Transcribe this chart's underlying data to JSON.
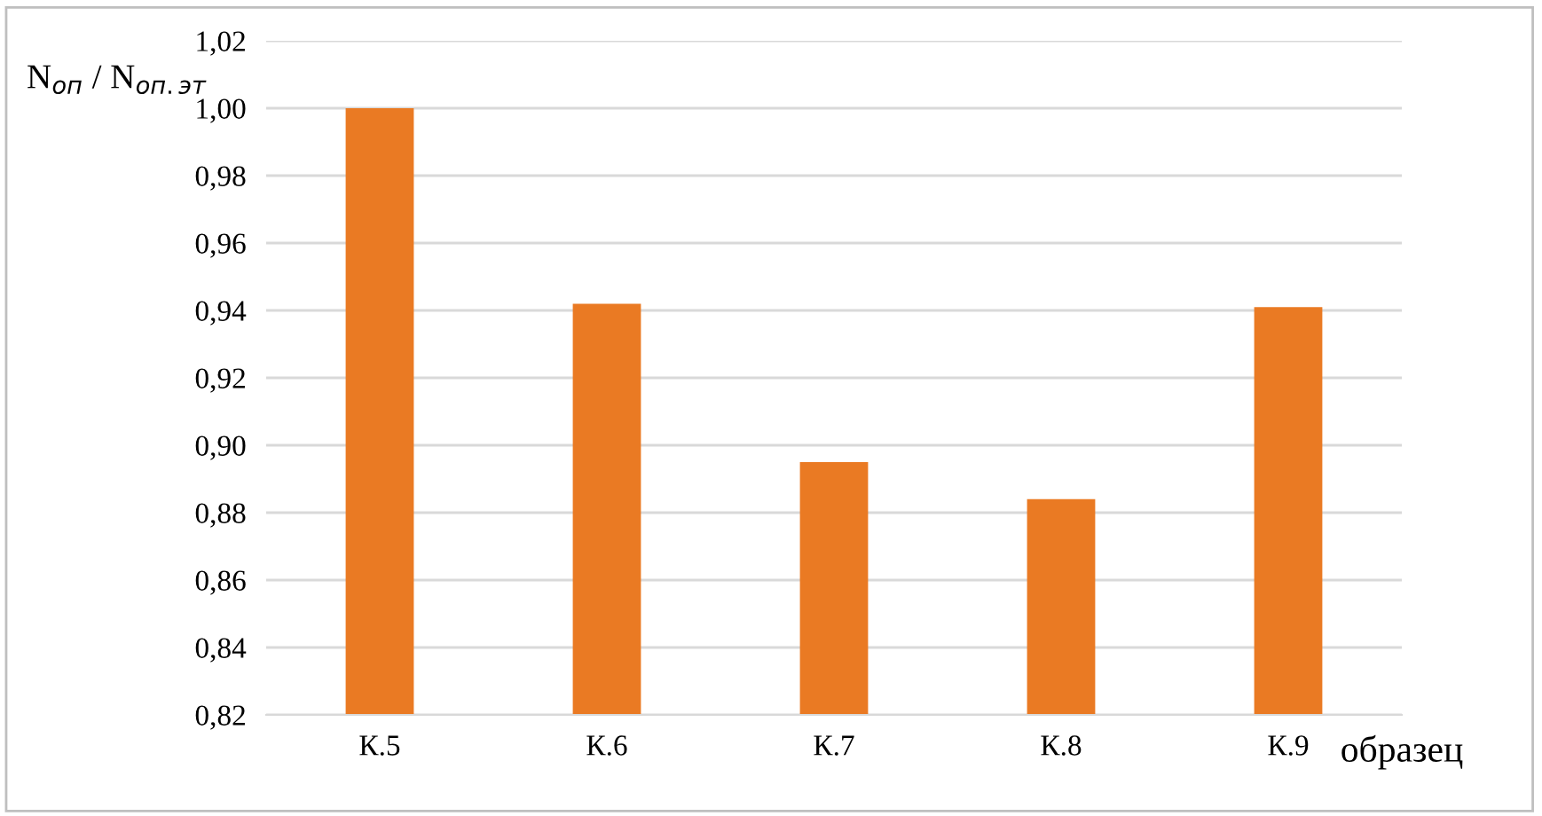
{
  "chart_data": {
    "type": "bar",
    "ylabel": "N$_{оп}$ / N$_{оп.эт}$",
    "xlabel": "образец",
    "categories": [
      "К.5",
      "К.6",
      "К.7",
      "К.8",
      "К.9"
    ],
    "values": [
      1.0,
      0.942,
      0.895,
      0.884,
      0.941
    ],
    "color": "#ea7a23",
    "ylim": [
      0.82,
      1.02
    ],
    "yticks": [
      {
        "value": 0.82,
        "label": "0,82"
      },
      {
        "value": 0.84,
        "label": "0,84"
      },
      {
        "value": 0.86,
        "label": "0,86"
      },
      {
        "value": 0.88,
        "label": "0,88"
      },
      {
        "value": 0.9,
        "label": "0,90"
      },
      {
        "value": 0.92,
        "label": "0,92"
      },
      {
        "value": 0.94,
        "label": "0,94"
      },
      {
        "value": 0.96,
        "label": "0,96"
      },
      {
        "value": 0.98,
        "label": "0,98"
      },
      {
        "value": 1.0,
        "label": "1,00"
      },
      {
        "value": 1.02,
        "label": "1,02"
      }
    ],
    "grid": "y"
  }
}
